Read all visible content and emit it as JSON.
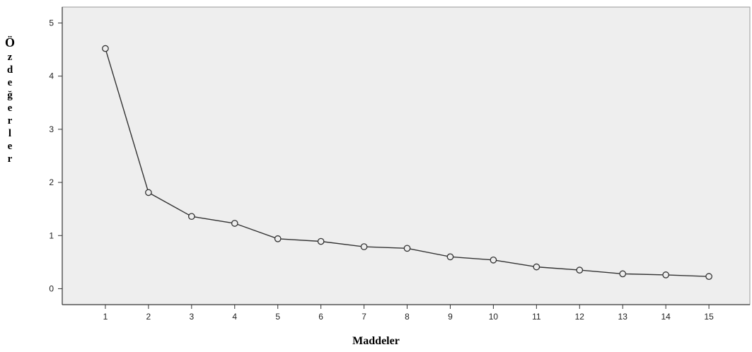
{
  "chart_data": {
    "type": "line",
    "title": "",
    "xlabel": "Maddeler",
    "ylabel": "Özdeğerler",
    "x": [
      1,
      2,
      3,
      4,
      5,
      6,
      7,
      8,
      9,
      10,
      11,
      12,
      13,
      14,
      15
    ],
    "y": [
      4.52,
      1.81,
      1.36,
      1.23,
      0.94,
      0.89,
      0.79,
      0.76,
      0.6,
      0.54,
      0.41,
      0.35,
      0.28,
      0.26,
      0.23
    ],
    "ylim": [
      -0.3,
      5.3
    ],
    "yticks": [
      0,
      1,
      2,
      3,
      4,
      5
    ],
    "grid": false,
    "colors": {
      "plot_background": "#eeeeee",
      "line": "#333333",
      "marker_fill": "#eeeeee"
    }
  }
}
